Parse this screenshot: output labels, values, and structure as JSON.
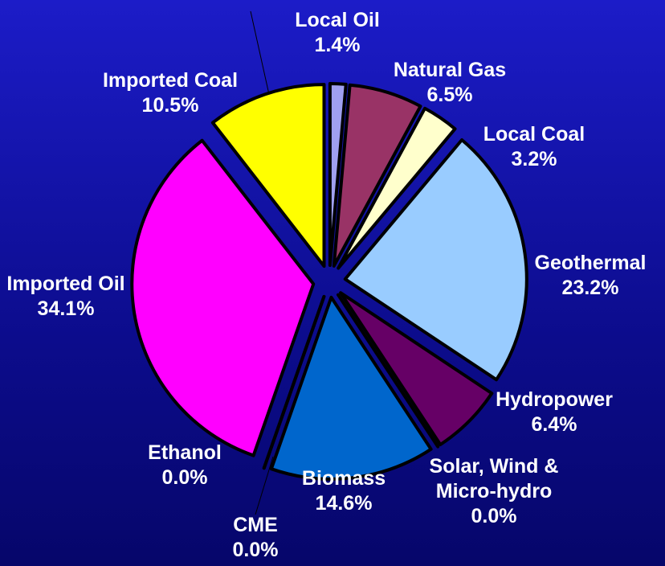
{
  "chart_data": {
    "type": "pie",
    "categories": [
      "Local Oil",
      "Natural Gas",
      "Local Coal",
      "Geothermal",
      "Hydropower",
      "Solar, Wind & Micro-hydro",
      "Biomass",
      "CME",
      "Ethanol",
      "Imported Oil",
      "Imported Coal"
    ],
    "values": [
      1.4,
      6.5,
      3.2,
      23.2,
      6.4,
      0.0,
      14.6,
      0.0,
      0.0,
      34.1,
      10.5
    ],
    "value_labels": [
      "1.4%",
      "6.5%",
      "3.2%",
      "23.2%",
      "6.4%",
      "0.0%",
      "14.6%",
      "0.0%",
      "0.0%",
      "34.1%",
      "10.5%"
    ],
    "colors": [
      "#a0a0f0",
      "#993366",
      "#ffffcc",
      "#99ccff",
      "#660066",
      "#808080",
      "#0066cc",
      "#c0c0c0",
      "#404040",
      "#ff00ff",
      "#ffff00"
    ]
  }
}
